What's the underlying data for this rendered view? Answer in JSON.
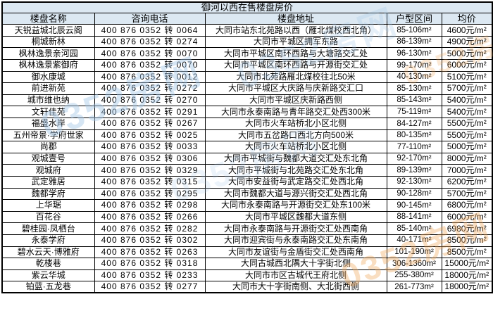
{
  "title": "御河以西在售楼盘房价",
  "columns": [
    "楼盘名称",
    "咨询电话",
    "楼盘地址",
    "户型区间",
    "均价"
  ],
  "watermark": {
    "text": "0352房网"
  },
  "colors": {
    "header_bg": "#dce8f2",
    "border": "#000000",
    "text": "#000000",
    "watermark_blue": "#a5c8e8",
    "watermark_orange": "#f0a95e",
    "background": "#ffffff"
  },
  "rows": [
    {
      "name": "天锐益城北辰云阁",
      "phone": "400 876 0352 转 0064",
      "address": "大同市站东北苑路以西（雁北煤校西北角）",
      "area": "85-106m²",
      "price": "4600元/m²"
    },
    {
      "name": "桐城新林",
      "phone": "400 876 0352 转 0274",
      "address": "大同市平城区拥军东路",
      "area": "86-139m²",
      "price": "4900元/m²"
    },
    {
      "name": "枫林逸景亲河园",
      "phone": "400 876 0352 转 0070",
      "address": "大同市平城区南环西路与大塘路交汇处",
      "area": "96-130m²",
      "price": "5000元/m²"
    },
    {
      "name": "枫林逸景紫御府",
      "phone": "400 876 0352 转 0070",
      "address": "大同市平城区南环西路与开源街交汇处",
      "area": "99-170m²",
      "price": "6000元/m²"
    },
    {
      "name": "御水康城",
      "phone": "400 876 0352 转 0012",
      "address": "大同市北苑路雁北煤校往北50米",
      "area": "40-130m²",
      "price": "5100元/m²"
    },
    {
      "name": "前进新苑",
      "phone": "400 876 0352 转 0272",
      "address": "大同市平城区大庆路与庆新路交汇口",
      "area": "85-130m²",
      "price": "5700元/m²"
    },
    {
      "name": "城市维也纳",
      "phone": "400 876 0352 转 0270",
      "address": "大同市平城区庆新路西侧",
      "area": "85-143m²",
      "price": "5400元/m²"
    },
    {
      "name": "文轩佳苑",
      "phone": "400 876 0352 转 0291",
      "address": "大同市永泰南路与青年路交汇处西300米",
      "area": "75-119m²",
      "price": "5400元/m²"
    },
    {
      "name": "福盛水岸",
      "phone": "400 876 0352 转 0267",
      "address": "大同市火车站桥北小区北侧",
      "area": "84-127m²",
      "price": "5500元/m²"
    },
    {
      "name": "五州帝景·学府世家",
      "phone": "400 876 0352 转 0025",
      "address": "大同市五岔路口西北方向500米",
      "area": "80-135m²",
      "price": "5500元/m²"
    },
    {
      "name": "尚郡",
      "phone": "400 876 0352 转 0033",
      "address": "大同市火车站桥北小区北侧",
      "area": "77-110m²",
      "price": "5000元/m²"
    },
    {
      "name": "观城壹号",
      "phone": "400 876 0352 转 0306",
      "address": "大同市平城街与魏都大道交汇处东北角",
      "area": "92-170m²",
      "price": "8000元/m²"
    },
    {
      "name": "观城府",
      "phone": "400 876 0352 转 0329",
      "address": "大同市平城街与北苑路交汇处东北角",
      "area": "89-139m²",
      "price": "7000元/m²"
    },
    {
      "name": "武定雅居",
      "phone": "400 876 0352 转 0315",
      "address": "大同市安益街与武定路交汇处西北角",
      "area": "92-130m²",
      "price": "6200元/m²"
    },
    {
      "name": "魏都学府",
      "phone": "400 876 0352 转 0295",
      "address": "大同市魏都大道与源兴街交汇处西北角",
      "area": "90-128m²",
      "price": "5700元/m²"
    },
    {
      "name": "上华琚",
      "phone": "400 876 0352 转 0298",
      "address": "大同市永泰南路与开源街交汇处东100米",
      "area": "90-145m²",
      "price": "6800元/m²"
    },
    {
      "name": "百花谷",
      "phone": "400 876 0352 转 0266",
      "address": "大同市平城区魏都大道东侧",
      "area": "88-141m²",
      "price": "6000元/m²"
    },
    {
      "name": "碧桂园·凤栖台",
      "phone": "400 876 0352 转 0282",
      "address": "大同市永泰南路与开源街交汇处西南角",
      "area": "85-140m²",
      "price": "6980元/m²"
    },
    {
      "name": "永泰学府",
      "phone": "400 876 0352 转 0302",
      "address": "大同市迎宾街与永泰南路交汇处东南角",
      "area": "40-171m²",
      "price": "8500元/m²"
    },
    {
      "name": "碧水云天·博雅府",
      "phone": "400 876 0352 转 0263",
      "address": "大同市友谊街与金盾街交汇处西南角",
      "area": "101-190m²",
      "price": "8500元/m²"
    },
    {
      "name": "乾楼巷",
      "phone": "400 876 0352 转 0318",
      "address": "大同古城西北隅大十字街北侧",
      "area": "306-1360m²",
      "price": "15000元/m²"
    },
    {
      "name": "紫云华城",
      "phone": "400 876 0352 转 0233",
      "address": "大同市市区古城代王府北侧",
      "area": "255-380m²",
      "price": "18000元/m²"
    },
    {
      "name": "铂蓝·五龙巷",
      "phone": "400 876 0352 转 0277",
      "address": "大同市大十字街南侧、大北街西侧",
      "area": "261-773m²",
      "price": "18000元/m²"
    }
  ]
}
